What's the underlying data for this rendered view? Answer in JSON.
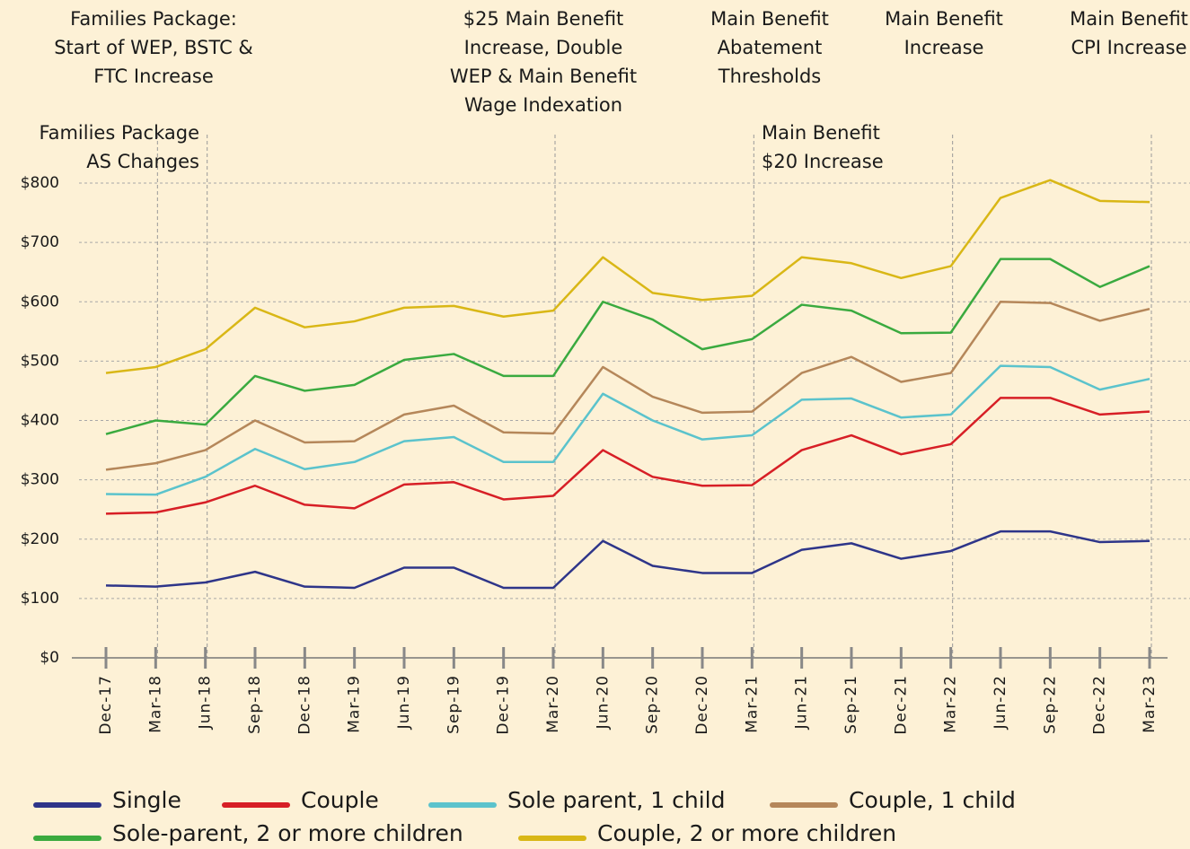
{
  "chart_data": {
    "type": "line",
    "categories": [
      "Dec-17",
      "Mar-18",
      "Jun-18",
      "Sep-18",
      "Dec-18",
      "Mar-19",
      "Jun-19",
      "Sep-19",
      "Dec-19",
      "Mar-20",
      "Jun-20",
      "Sep-20",
      "Dec-20",
      "Mar-21",
      "Jun-21",
      "Sep-21",
      "Dec-21",
      "Mar-22",
      "Jun-22",
      "Sep-22",
      "Dec-22",
      "Mar-23"
    ],
    "series": [
      {
        "name": "Single",
        "color": "#2e3589",
        "values": [
          122,
          120,
          127,
          145,
          120,
          118,
          152,
          152,
          118,
          118,
          197,
          155,
          143,
          143,
          182,
          193,
          167,
          180,
          213,
          213,
          195,
          197
        ]
      },
      {
        "name": "Couple",
        "color": "#d71f26",
        "values": [
          243,
          245,
          262,
          290,
          258,
          252,
          292,
          296,
          267,
          273,
          350,
          305,
          290,
          291,
          350,
          375,
          343,
          360,
          438,
          438,
          410,
          415
        ]
      },
      {
        "name": "Sole parent, 1 child",
        "color": "#5bc3cc",
        "values": [
          276,
          275,
          305,
          352,
          318,
          330,
          365,
          372,
          330,
          330,
          445,
          400,
          368,
          375,
          435,
          437,
          405,
          410,
          492,
          490,
          452,
          470
        ]
      },
      {
        "name": "Couple, 1 child",
        "color": "#b5875a",
        "values": [
          317,
          328,
          350,
          400,
          363,
          365,
          410,
          425,
          380,
          378,
          490,
          440,
          413,
          415,
          480,
          507,
          465,
          480,
          600,
          598,
          568,
          588
        ]
      },
      {
        "name": "Sole-parent, 2 or more children",
        "color": "#3aaa3f",
        "values": [
          377,
          400,
          393,
          475,
          450,
          460,
          502,
          512,
          475,
          475,
          600,
          570,
          520,
          537,
          595,
          585,
          547,
          548,
          672,
          672,
          625,
          660
        ]
      },
      {
        "name": "Couple, 2 or more children",
        "color": "#d9b716",
        "values": [
          480,
          490,
          520,
          590,
          557,
          567,
          590,
          593,
          575,
          585,
          675,
          615,
          603,
          610,
          675,
          665,
          640,
          660,
          775,
          805,
          770,
          768
        ]
      }
    ],
    "ylim": [
      0,
      800
    ],
    "yticks": [
      {
        "value": 0,
        "label": "$0"
      },
      {
        "value": 100,
        "label": "$100"
      },
      {
        "value": 200,
        "label": "$200"
      },
      {
        "value": 300,
        "label": "$300"
      },
      {
        "value": 400,
        "label": "$400"
      },
      {
        "value": 500,
        "label": "$500"
      },
      {
        "value": 600,
        "label": "$600"
      },
      {
        "value": 700,
        "label": "$700"
      },
      {
        "value": 800,
        "label": "$800"
      }
    ],
    "grid": true,
    "annotations": [
      [
        "Families Package:",
        "Start of WEP, BSTC &",
        "FTC Increase"
      ],
      [
        "Families Package",
        "AS Changes"
      ],
      [
        "$25 Main Benefit",
        "Increase, Double",
        "WEP & Main Benefit",
        "Wage Indexation"
      ],
      [
        "Main Benefit",
        "Abatement",
        "Thresholds"
      ],
      [
        "Main Benefit",
        "$20 Increase"
      ],
      [
        "Main Benefit",
        "Increase"
      ],
      [
        "Main Benefit",
        "CPI Increase"
      ]
    ]
  }
}
